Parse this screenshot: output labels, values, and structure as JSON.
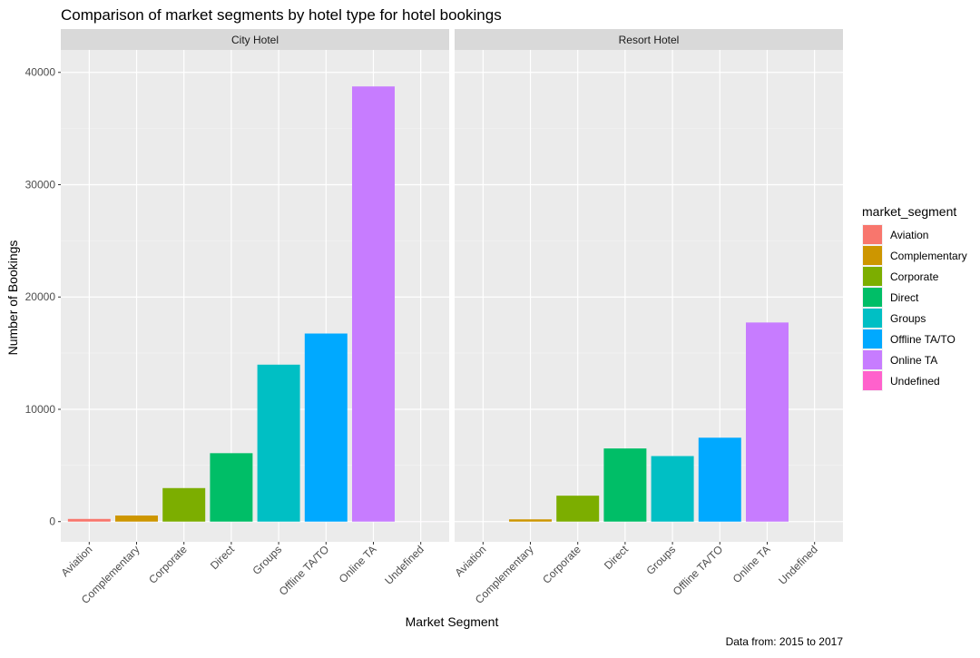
{
  "chart_data": {
    "type": "bar",
    "title": "Comparison of market segments by hotel type for hotel bookings",
    "xlabel": "Market Segment",
    "ylabel": "Number of Bookings",
    "caption": "Data from: 2015 to 2017",
    "ylim": [
      -1800,
      42000
    ],
    "y_ticks": [
      0,
      10000,
      20000,
      30000,
      40000
    ],
    "grid": true,
    "legend_title": "market_segment",
    "legend_position": "right",
    "categories": [
      "Aviation",
      "Complementary",
      "Corporate",
      "Direct",
      "Groups",
      "Offline TA/TO",
      "Online TA",
      "Undefined"
    ],
    "colors": [
      "#F8766D",
      "#CD9600",
      "#7CAE00",
      "#00BE67",
      "#00BFC4",
      "#00A9FF",
      "#C77CFF",
      "#FF61CC"
    ],
    "panels": [
      {
        "name": "City Hotel",
        "values": [
          237,
          542,
          2986,
          6093,
          13975,
          16747,
          38748,
          2
        ]
      },
      {
        "name": "Resort Hotel",
        "values": [
          0,
          201,
          2309,
          6513,
          5836,
          7472,
          17729,
          0
        ]
      }
    ]
  }
}
